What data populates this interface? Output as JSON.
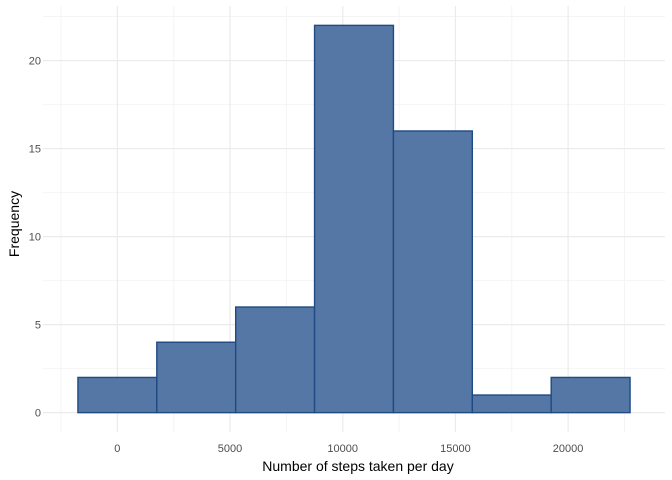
{
  "chart_data": {
    "type": "bar",
    "subtype": "histogram",
    "title": "",
    "xlabel": "Number of steps taken per day",
    "ylabel": "Frequency",
    "bins": [
      {
        "x0": -1750,
        "x1": 1750,
        "count": 2
      },
      {
        "x0": 1750,
        "x1": 5250,
        "count": 4
      },
      {
        "x0": 5250,
        "x1": 8750,
        "count": 6
      },
      {
        "x0": 8750,
        "x1": 12250,
        "count": 22
      },
      {
        "x0": 12250,
        "x1": 15750,
        "count": 16
      },
      {
        "x0": 15750,
        "x1": 19250,
        "count": 1
      },
      {
        "x0": 19250,
        "x1": 22750,
        "count": 2
      }
    ],
    "xlim": [
      -3300,
      24300
    ],
    "ylim": [
      -1.1,
      23.1
    ],
    "xticks": [
      0,
      5000,
      10000,
      15000,
      20000
    ],
    "xtick_labels": [
      "0",
      "5000",
      "10000",
      "15000",
      "20000"
    ],
    "yticks": [
      0,
      5,
      10,
      15,
      20
    ],
    "ytick_labels": [
      "0",
      "5",
      "10",
      "15",
      "20"
    ],
    "grid": true,
    "legend": "none",
    "colors": {
      "bar_fill": "#5577A5",
      "bar_stroke": "#1F4A84",
      "grid_major": "#EBEBEB",
      "grid_minor": "#F4F4F4"
    }
  }
}
